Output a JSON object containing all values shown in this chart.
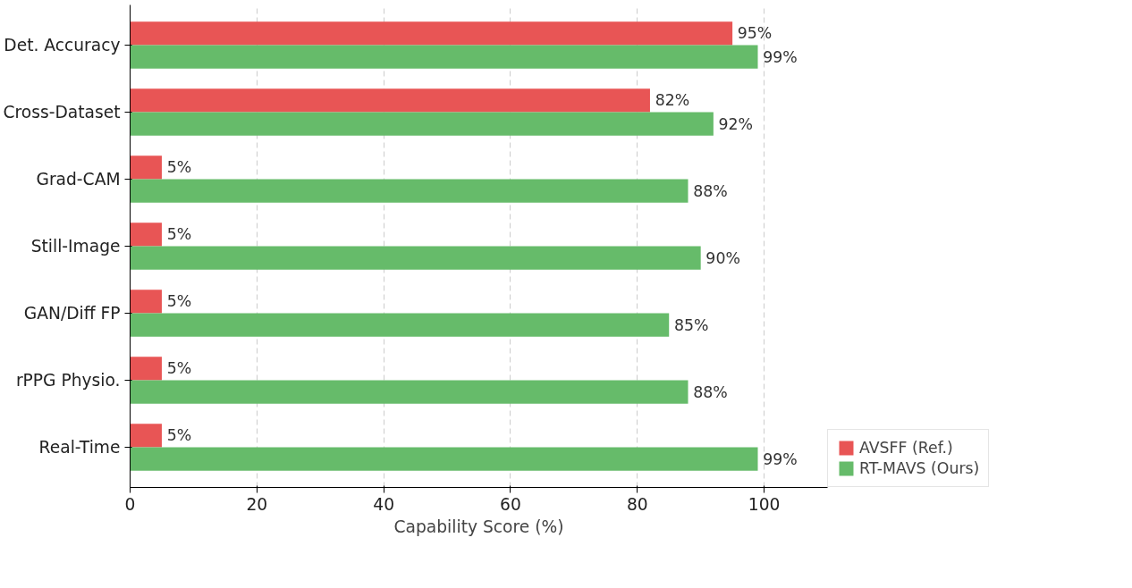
{
  "chart_data": {
    "type": "bar",
    "orientation": "horizontal",
    "xlabel": "Capability Score (%)",
    "categories": [
      "Det. Accuracy",
      "Cross-Dataset",
      "Grad-CAM",
      "Still-Image",
      "GAN/Diff FP",
      "rPPG Physio.",
      "Real-Time"
    ],
    "series": [
      {
        "name": "AVSFF (Ref.)",
        "color": "#e85555",
        "values": [
          95,
          82,
          5,
          5,
          5,
          5,
          5
        ],
        "value_labels": [
          "95%",
          "82%",
          "5%",
          "5%",
          "5%",
          "5%",
          "5%"
        ]
      },
      {
        "name": "RT-MAVS (Ours)",
        "color": "#66bb6a",
        "values": [
          99,
          92,
          88,
          90,
          85,
          88,
          99
        ],
        "value_labels": [
          "99%",
          "92%",
          "88%",
          "90%",
          "85%",
          "88%",
          "99%"
        ]
      }
    ],
    "xlim": [
      0,
      110
    ],
    "xticks": [
      0,
      20,
      40,
      60,
      80,
      100
    ],
    "grid": "x",
    "legend": "bottom right"
  }
}
